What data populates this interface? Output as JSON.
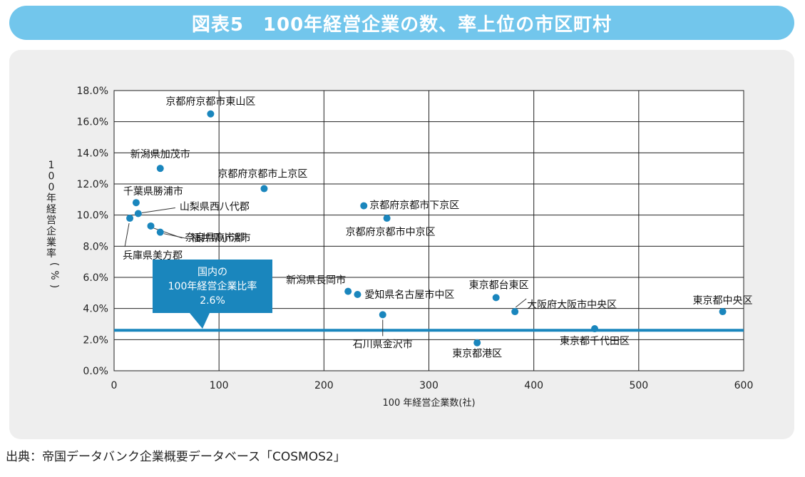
{
  "header": {
    "title": "図表5　100年経営企業の数、率上位の市区町村"
  },
  "footer": {
    "source": "出典：帝国データバンク企業概要データベース「COSMOS2」"
  },
  "chart_data": {
    "type": "scatter",
    "title": "図表5　100年経営企業の数、率上位の市区町村",
    "xlabel": "100 年経営企業数(社)",
    "ylabel": "100年経営企業率(%)",
    "xlim": [
      0,
      600
    ],
    "ylim": [
      0,
      18
    ],
    "x_ticks": [
      0,
      100,
      200,
      300,
      400,
      500,
      600
    ],
    "y_ticks": [
      0,
      2,
      4,
      6,
      8,
      10,
      12,
      14,
      16,
      18
    ],
    "y_tick_labels": [
      "0.0%",
      "2.0%",
      "4.0%",
      "6.0%",
      "8.0%",
      "10.0%",
      "12.0%",
      "14.0%",
      "16.0%",
      "18.0%"
    ],
    "grid": true,
    "marker_color": "#1a86bd",
    "reference_line": {
      "y": 2.6,
      "label_lines": [
        "国内の",
        "100年経営企業比率",
        "2.6%"
      ],
      "color": "#1a86bd"
    },
    "points": [
      {
        "label": "京都府京都市東山区",
        "x": 92,
        "y": 16.5
      },
      {
        "label": "新潟県加茂市",
        "x": 44,
        "y": 13.0
      },
      {
        "label": "京都府京都市上京区",
        "x": 143,
        "y": 11.7
      },
      {
        "label": "千葉県勝浦市",
        "x": 21,
        "y": 10.8
      },
      {
        "label": "山梨県西八代郡",
        "x": 23,
        "y": 10.1
      },
      {
        "label": "兵庫県美方郡",
        "x": 15,
        "y": 9.8
      },
      {
        "label": "奈良県高市郡",
        "x": 35,
        "y": 9.3
      },
      {
        "label": "福井県小浜市",
        "x": 44,
        "y": 8.9
      },
      {
        "label": "京都府京都市下京区",
        "x": 238,
        "y": 10.6
      },
      {
        "label": "京都府京都市中京区",
        "x": 260,
        "y": 9.8
      },
      {
        "label": "新潟県長岡市",
        "x": 223,
        "y": 5.1
      },
      {
        "label": "愛知県名古屋市中区",
        "x": 232,
        "y": 4.9
      },
      {
        "label": "石川県金沢市",
        "x": 256,
        "y": 3.6
      },
      {
        "label": "東京都台東区",
        "x": 364,
        "y": 4.7
      },
      {
        "label": "大阪府大阪市中央区",
        "x": 382,
        "y": 3.8
      },
      {
        "label": "東京都港区",
        "x": 346,
        "y": 1.8
      },
      {
        "label": "東京都千代田区",
        "x": 458,
        "y": 2.7
      },
      {
        "label": "東京都中央区",
        "x": 580,
        "y": 3.8
      }
    ]
  }
}
